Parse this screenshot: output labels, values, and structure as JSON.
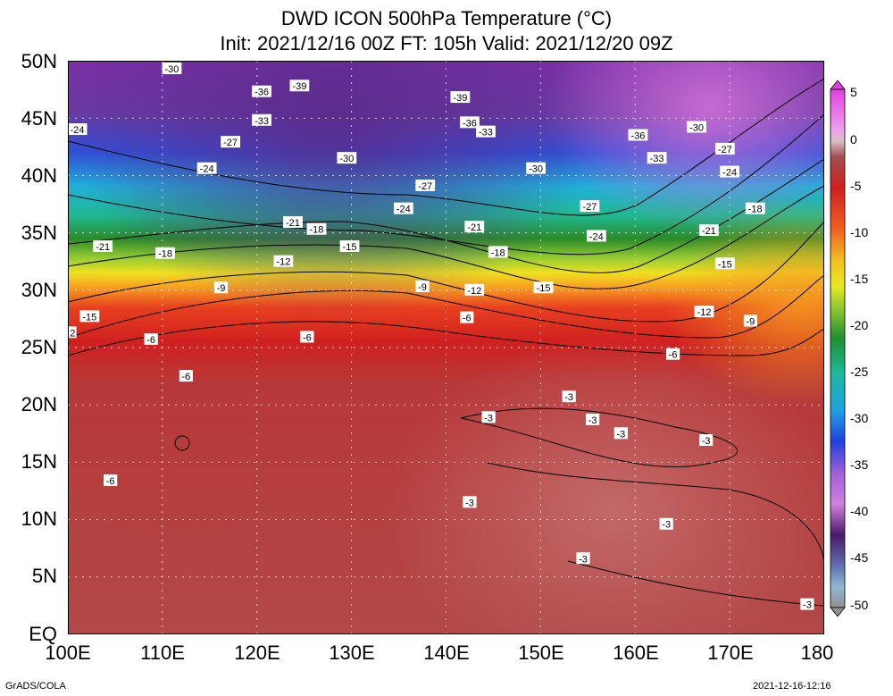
{
  "title": {
    "line1": "DWD ICON 500hPa Temperature (°C)",
    "line2": "Init: 2021/12/16 00Z  FT: 105h  Valid: 2021/12/20 09Z"
  },
  "axes": {
    "lat_labels": [
      "50N",
      "45N",
      "40N",
      "35N",
      "30N",
      "25N",
      "20N",
      "15N",
      "10N",
      "5N",
      "EQ"
    ],
    "lon_labels": [
      "100E",
      "110E",
      "120E",
      "130E",
      "140E",
      "150E",
      "160E",
      "170E",
      "180"
    ],
    "lat_range": [
      0,
      50
    ],
    "lon_range": [
      100,
      180
    ],
    "grid": "dotted"
  },
  "colorbar": {
    "labels": [
      "5",
      "0",
      "-5",
      "-10",
      "-15",
      "-20",
      "-25",
      "-30",
      "-35",
      "-40",
      "-45",
      "-50"
    ],
    "range": [
      -50,
      5
    ],
    "units": "°C"
  },
  "contour_labels": [
    {
      "text": "-30",
      "lon": 111,
      "lat": 49.3
    },
    {
      "text": "-36",
      "lon": 120.5,
      "lat": 47.3
    },
    {
      "text": "-39",
      "lon": 124.5,
      "lat": 47.8
    },
    {
      "text": "-39",
      "lon": 141.5,
      "lat": 46.8
    },
    {
      "text": "-33",
      "lon": 120.5,
      "lat": 44.8
    },
    {
      "text": "-36",
      "lon": 142.5,
      "lat": 44.6
    },
    {
      "text": "-33",
      "lon": 144.2,
      "lat": 43.8
    },
    {
      "text": "-36",
      "lon": 160.3,
      "lat": 43.5
    },
    {
      "text": "-30",
      "lon": 166.5,
      "lat": 44.2
    },
    {
      "text": "-24",
      "lon": 101,
      "lat": 44
    },
    {
      "text": "-27",
      "lon": 117.2,
      "lat": 42.9
    },
    {
      "text": "-27",
      "lon": 169.5,
      "lat": 42.3
    },
    {
      "text": "-30",
      "lon": 129.5,
      "lat": 41.5
    },
    {
      "text": "-33",
      "lon": 162.3,
      "lat": 41.5
    },
    {
      "text": "-24",
      "lon": 114.7,
      "lat": 40.6
    },
    {
      "text": "-30",
      "lon": 149.5,
      "lat": 40.6
    },
    {
      "text": "-24",
      "lon": 170,
      "lat": 40.3
    },
    {
      "text": "-27",
      "lon": 137.8,
      "lat": 39.1
    },
    {
      "text": "-24",
      "lon": 135.5,
      "lat": 37.1
    },
    {
      "text": "-27",
      "lon": 155.2,
      "lat": 37.3
    },
    {
      "text": "-18",
      "lon": 172.7,
      "lat": 37.1
    },
    {
      "text": "-21",
      "lon": 123.8,
      "lat": 35.9
    },
    {
      "text": "-18",
      "lon": 126.3,
      "lat": 35.3
    },
    {
      "text": "-21",
      "lon": 143,
      "lat": 35.5
    },
    {
      "text": "-21",
      "lon": 167.8,
      "lat": 35.2
    },
    {
      "text": "-24",
      "lon": 155.9,
      "lat": 34.7
    },
    {
      "text": "-15",
      "lon": 129.8,
      "lat": 33.8
    },
    {
      "text": "-21",
      "lon": 103.7,
      "lat": 33.8
    },
    {
      "text": "-18",
      "lon": 110.3,
      "lat": 33.2
    },
    {
      "text": "-18",
      "lon": 145.5,
      "lat": 33.3
    },
    {
      "text": "-12",
      "lon": 122.8,
      "lat": 32.5
    },
    {
      "text": "-15",
      "lon": 169.5,
      "lat": 32.3
    },
    {
      "text": "-9",
      "lon": 116.2,
      "lat": 30.2
    },
    {
      "text": "-9",
      "lon": 137.5,
      "lat": 30.3
    },
    {
      "text": "-12",
      "lon": 143,
      "lat": 30
    },
    {
      "text": "-15",
      "lon": 150.3,
      "lat": 30.2
    },
    {
      "text": "-12",
      "lon": 167.3,
      "lat": 28.1
    },
    {
      "text": "-15",
      "lon": 102.3,
      "lat": 27.7
    },
    {
      "text": "-6",
      "lon": 142.2,
      "lat": 27.6
    },
    {
      "text": "-9",
      "lon": 172.2,
      "lat": 27.3
    },
    {
      "text": "2",
      "lon": 100.5,
      "lat": 26.3
    },
    {
      "text": "-6",
      "lon": 108.8,
      "lat": 25.7
    },
    {
      "text": "-6",
      "lon": 125.3,
      "lat": 25.9
    },
    {
      "text": "-6",
      "lon": 164,
      "lat": 24.4
    },
    {
      "text": "-6",
      "lon": 112.5,
      "lat": 22.5
    },
    {
      "text": "-3",
      "lon": 153,
      "lat": 20.7
    },
    {
      "text": "-3",
      "lon": 144.5,
      "lat": 18.9
    },
    {
      "text": "-3",
      "lon": 155.5,
      "lat": 18.7
    },
    {
      "text": "-3",
      "lon": 158.5,
      "lat": 17.5
    },
    {
      "text": "-3",
      "lon": 167.5,
      "lat": 16.9
    },
    {
      "text": "-6",
      "lon": 104.5,
      "lat": 13.4
    },
    {
      "text": "-3",
      "lon": 142.5,
      "lat": 11.5
    },
    {
      "text": "-3",
      "lon": 163.3,
      "lat": 9.6
    },
    {
      "text": "-3",
      "lon": 154.5,
      "lat": 6.6
    },
    {
      "text": "-3",
      "lon": 178.2,
      "lat": 2.6
    }
  ],
  "footer": {
    "left": "GrADS/COLA",
    "right": "2021-12-16-12:16"
  }
}
